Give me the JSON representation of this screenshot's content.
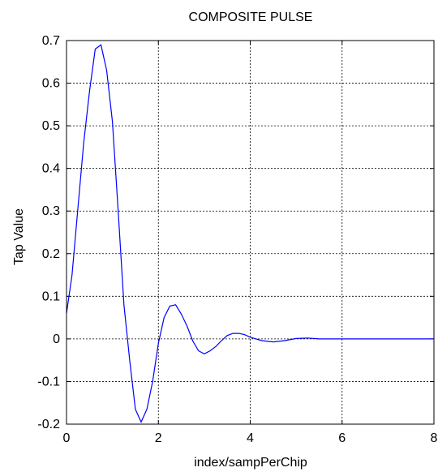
{
  "chart_data": {
    "type": "line",
    "title": "COMPOSITE PULSE",
    "xlabel": "index/sampPerChip",
    "ylabel": "Tap Value",
    "xlim": [
      0,
      8
    ],
    "ylim": [
      -0.2,
      0.7
    ],
    "x_ticks": [
      0,
      2,
      4,
      6,
      8
    ],
    "y_ticks": [
      -0.2,
      -0.1,
      0,
      0.1,
      0.2,
      0.3,
      0.4,
      0.5,
      0.6,
      0.7
    ],
    "x_tick_labels": [
      "0",
      "2",
      "4",
      "6",
      "8"
    ],
    "y_tick_labels": [
      "-0.2",
      "-0.1",
      "0",
      "0.1",
      "0.2",
      "0.3",
      "0.4",
      "0.5",
      "0.6",
      "0.7"
    ],
    "grid": true,
    "line_color": "#0000ff",
    "series": [
      {
        "x": [
          0,
          0.12,
          0.25,
          0.375,
          0.5,
          0.625,
          0.75,
          0.875,
          1.0,
          1.125,
          1.25,
          1.375,
          1.5,
          1.625,
          1.75,
          1.875,
          2.0,
          2.125,
          2.25,
          2.375,
          2.5,
          2.625,
          2.75,
          2.875,
          3.0,
          3.125,
          3.25,
          3.375,
          3.5,
          3.625,
          3.75,
          3.875,
          4.0,
          4.25,
          4.5,
          4.75,
          5.0,
          5.25,
          5.5,
          6.0,
          7.0,
          8.0
        ],
        "y": [
          0.06,
          0.15,
          0.31,
          0.46,
          0.58,
          0.68,
          0.69,
          0.63,
          0.51,
          0.3,
          0.08,
          -0.05,
          -0.165,
          -0.195,
          -0.165,
          -0.1,
          -0.01,
          0.05,
          0.077,
          0.08,
          0.058,
          0.03,
          -0.005,
          -0.028,
          -0.035,
          -0.028,
          -0.018,
          -0.004,
          0.008,
          0.013,
          0.013,
          0.01,
          0.004,
          -0.004,
          -0.007,
          -0.004,
          0.001,
          0.002,
          0.0,
          0.0,
          0.0,
          0.0
        ]
      }
    ]
  }
}
